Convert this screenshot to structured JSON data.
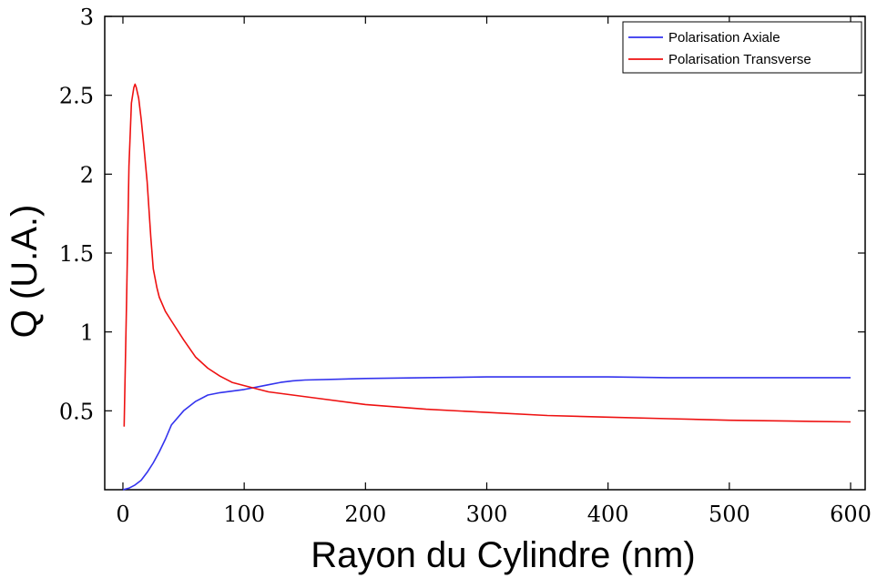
{
  "chart_data": {
    "type": "line",
    "title": "",
    "xlabel": "Rayon du Cylindre (nm)",
    "ylabel": "Q (U.A.)",
    "xlim": [
      -15,
      612
    ],
    "ylim": [
      0,
      3
    ],
    "xticks": [
      0,
      100,
      200,
      300,
      400,
      500,
      600
    ],
    "yticks": [
      0.5,
      1,
      1.5,
      2,
      2.5,
      3
    ],
    "xtick_labels": [
      "0",
      "100",
      "200",
      "300",
      "400",
      "500",
      "600"
    ],
    "ytick_labels": [
      "0.5",
      "1",
      "1.5",
      "2",
      "2.5",
      "3"
    ],
    "grid": false,
    "legend_position": "top-right",
    "series": [
      {
        "name": "Polarisation Axiale",
        "color": "#3333ee",
        "x": [
          0,
          5,
          10,
          15,
          20,
          25,
          30,
          35,
          40,
          50,
          60,
          70,
          80,
          90,
          100,
          110,
          120,
          130,
          140,
          150,
          175,
          200,
          250,
          300,
          350,
          400,
          450,
          500,
          550,
          600
        ],
        "y": [
          0.0,
          0.01,
          0.03,
          0.06,
          0.11,
          0.17,
          0.24,
          0.32,
          0.41,
          0.5,
          0.56,
          0.6,
          0.615,
          0.625,
          0.635,
          0.65,
          0.665,
          0.68,
          0.69,
          0.695,
          0.7,
          0.705,
          0.71,
          0.715,
          0.715,
          0.715,
          0.71,
          0.71,
          0.71,
          0.71
        ]
      },
      {
        "name": "Polarisation Transverse",
        "color": "#ee1111",
        "x": [
          1,
          3,
          5,
          7,
          9,
          10,
          11,
          13,
          15,
          17,
          20,
          23,
          25,
          28,
          30,
          35,
          40,
          50,
          60,
          70,
          80,
          90,
          100,
          120,
          140,
          160,
          200,
          250,
          300,
          350,
          400,
          450,
          500,
          550,
          600
        ],
        "y": [
          0.4,
          1.2,
          2.05,
          2.45,
          2.55,
          2.57,
          2.55,
          2.48,
          2.35,
          2.2,
          1.95,
          1.6,
          1.4,
          1.28,
          1.22,
          1.13,
          1.07,
          0.95,
          0.84,
          0.77,
          0.72,
          0.68,
          0.66,
          0.62,
          0.6,
          0.58,
          0.54,
          0.51,
          0.49,
          0.47,
          0.46,
          0.45,
          0.44,
          0.435,
          0.43
        ]
      }
    ]
  }
}
